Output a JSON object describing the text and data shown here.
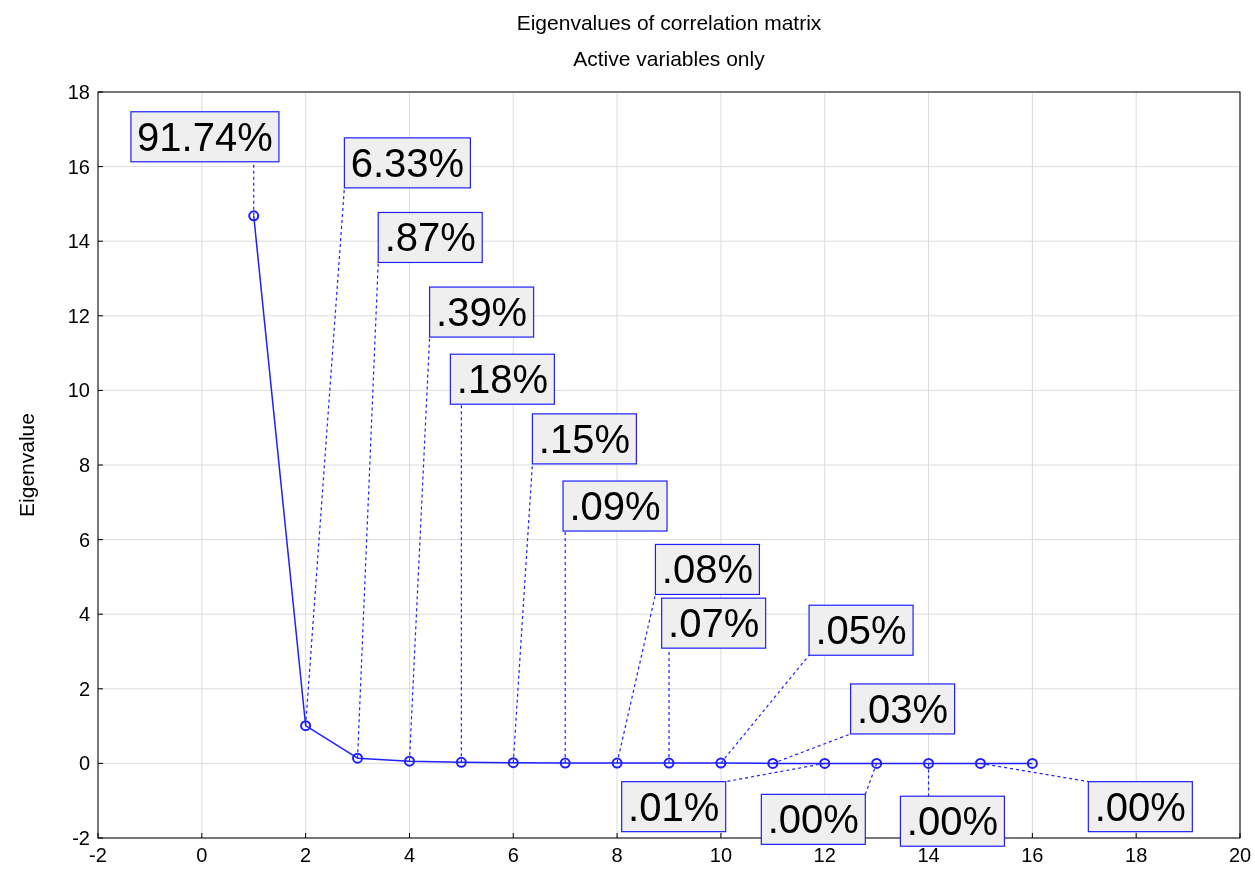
{
  "chart_data": {
    "type": "line",
    "title": "Eigenvalues of correlation matrix",
    "subtitle": "Active variables only",
    "ylabel": "Eigenvalue",
    "x": [
      1,
      2,
      3,
      4,
      5,
      6,
      7,
      8,
      9,
      10,
      11,
      12,
      13,
      14,
      15,
      16
    ],
    "series": [
      {
        "color": "#1f1fff",
        "values": [
          14.68,
          1.01,
          0.14,
          0.06,
          0.03,
          0.02,
          0.01,
          0.01,
          0.01,
          0.01,
          0,
          0,
          0,
          0,
          0,
          0
        ]
      }
    ],
    "annotations": [
      {
        "text": "91.74%",
        "x": 1,
        "y": 14.68
      },
      {
        "text": "6.33%",
        "x": 2,
        "y": 1.01
      },
      {
        "text": ".87%",
        "x": 3,
        "y": 0.14
      },
      {
        "text": ".39%",
        "x": 4,
        "y": 0.06
      },
      {
        "text": ".18%",
        "x": 5,
        "y": 0.03
      },
      {
        "text": ".15%",
        "x": 6,
        "y": 0.02
      },
      {
        "text": ".09%",
        "x": 7,
        "y": 0.01
      },
      {
        "text": ".08%",
        "x": 8,
        "y": 0.01
      },
      {
        "text": ".07%",
        "x": 9,
        "y": 0.01
      },
      {
        "text": ".05%",
        "x": 10,
        "y": 0.01
      },
      {
        "text": ".03%",
        "x": 11,
        "y": 0
      },
      {
        "text": ".01%",
        "x": 12,
        "y": 0
      },
      {
        "text": ".00%",
        "x": 13,
        "y": 0
      },
      {
        "text": ".00%",
        "x": 14,
        "y": 0
      },
      {
        "text": ".00%",
        "x": 15,
        "y": 0
      }
    ],
    "xlim": [
      -2,
      20
    ],
    "xticks": [
      -2,
      0,
      2,
      4,
      6,
      8,
      10,
      12,
      14,
      16,
      18,
      20
    ],
    "ylim": [
      -2,
      18
    ],
    "yticks": [
      -2,
      0,
      2,
      4,
      6,
      8,
      10,
      12,
      14,
      16,
      18
    ],
    "grid": true,
    "marker": "circle",
    "line_style": "solid"
  }
}
